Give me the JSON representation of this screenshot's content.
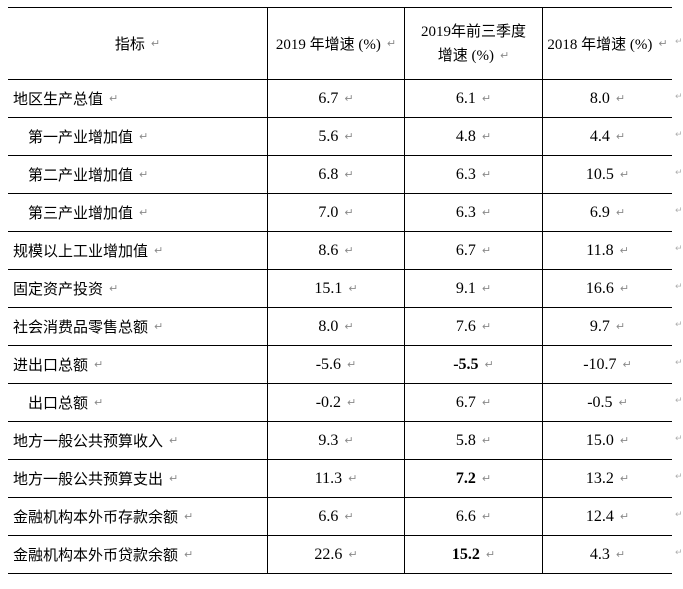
{
  "table": {
    "pilcrow": "↵",
    "row_end_mark": "↵",
    "border_color": "#000000",
    "text_color": "#000000",
    "columns": [
      {
        "label": "指标"
      },
      {
        "label": "2019 年增速 (%)"
      },
      {
        "label_line1": "2019年前三季度",
        "label_line2": "增速 (%)"
      },
      {
        "label": "2018 年增速 (%)"
      }
    ],
    "rows": [
      {
        "indicator": "地区生产总值",
        "indent": false,
        "v2019": "6.7",
        "v2019q3": "6.1",
        "v2019q3_bold": false,
        "v2018": "8.0"
      },
      {
        "indicator": "第一产业增加值",
        "indent": true,
        "v2019": "5.6",
        "v2019q3": "4.8",
        "v2019q3_bold": false,
        "v2018": "4.4"
      },
      {
        "indicator": "第二产业增加值",
        "indent": true,
        "v2019": "6.8",
        "v2019q3": "6.3",
        "v2019q3_bold": false,
        "v2018": "10.5"
      },
      {
        "indicator": "第三产业增加值",
        "indent": true,
        "v2019": "7.0",
        "v2019q3": "6.3",
        "v2019q3_bold": false,
        "v2018": "6.9"
      },
      {
        "indicator": "规模以上工业增加值",
        "indent": false,
        "v2019": "8.6",
        "v2019q3": "6.7",
        "v2019q3_bold": false,
        "v2018": "11.8"
      },
      {
        "indicator": "固定资产投资",
        "indent": false,
        "v2019": "15.1",
        "v2019q3": "9.1",
        "v2019q3_bold": false,
        "v2018": "16.6"
      },
      {
        "indicator": "社会消费品零售总额",
        "indent": false,
        "v2019": "8.0",
        "v2019q3": "7.6",
        "v2019q3_bold": false,
        "v2018": "9.7"
      },
      {
        "indicator": "进出口总额",
        "indent": false,
        "v2019": "-5.6",
        "v2019q3": "-5.5",
        "v2019q3_bold": true,
        "v2018": "-10.7"
      },
      {
        "indicator": "出口总额",
        "indent": true,
        "v2019": "-0.2",
        "v2019q3": "6.7",
        "v2019q3_bold": false,
        "v2018": "-0.5"
      },
      {
        "indicator": "地方一般公共预算收入",
        "indent": false,
        "v2019": "9.3",
        "v2019q3": "5.8",
        "v2019q3_bold": false,
        "v2018": "15.0"
      },
      {
        "indicator": "地方一般公共预算支出",
        "indent": false,
        "v2019": "11.3",
        "v2019q3": "7.2",
        "v2019q3_bold": true,
        "v2018": "13.2"
      },
      {
        "indicator": "金融机构本外币存款余额",
        "indent": false,
        "v2019": "6.6",
        "v2019q3": "6.6",
        "v2019q3_bold": false,
        "v2018": "12.4"
      },
      {
        "indicator": "金融机构本外币贷款余额",
        "indent": false,
        "v2019": "22.6",
        "v2019q3": "15.2",
        "v2019q3_bold": true,
        "v2018": "4.3"
      }
    ]
  }
}
